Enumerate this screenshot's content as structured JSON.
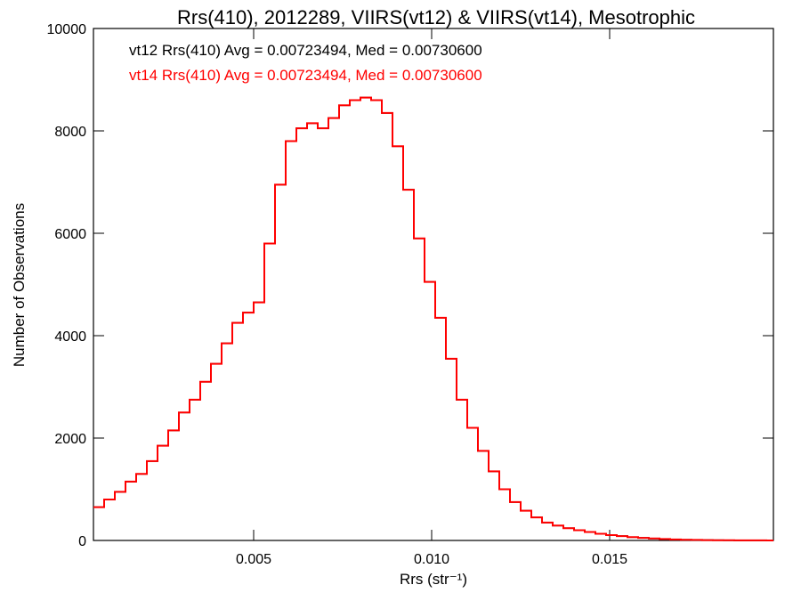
{
  "chart_data": {
    "type": "line",
    "style": "histogram-step",
    "title": "Rrs(410), 2012289, VIIRS(vt12) & VIIRS(vt14), Mesotrophic",
    "xlabel": "Rrs (str⁻¹)",
    "ylabel": "Number of Observations",
    "xlim": [
      0.0005,
      0.0196
    ],
    "ylim": [
      0,
      10000
    ],
    "x_ticks": [
      {
        "value": 0.005,
        "label": "0.005"
      },
      {
        "value": 0.01,
        "label": "0.010"
      },
      {
        "value": 0.015,
        "label": "0.015"
      }
    ],
    "y_ticks": [
      {
        "value": 0,
        "label": "0"
      },
      {
        "value": 2000,
        "label": "2000"
      },
      {
        "value": 4000,
        "label": "4000"
      },
      {
        "value": 6000,
        "label": "6000"
      },
      {
        "value": 8000,
        "label": "8000"
      },
      {
        "value": 10000,
        "label": "10000"
      }
    ],
    "grid": false,
    "annotations": [
      {
        "text": "vt12 Rrs(410) Avg = 0.00723494, Med = 0.00730600",
        "color": "#000000"
      },
      {
        "text": "vt14 Rrs(410) Avg = 0.00723494, Med = 0.00730600",
        "color": "#ff0000"
      }
    ],
    "series": [
      {
        "name": "vt12",
        "color": "#000000",
        "points": [
          [
            0.0005,
            650
          ],
          [
            0.0008,
            800
          ],
          [
            0.0011,
            950
          ],
          [
            0.0014,
            1150
          ],
          [
            0.0017,
            1300
          ],
          [
            0.002,
            1550
          ],
          [
            0.0023,
            1850
          ],
          [
            0.0026,
            2150
          ],
          [
            0.0029,
            2500
          ],
          [
            0.0032,
            2750
          ],
          [
            0.0035,
            3100
          ],
          [
            0.0038,
            3450
          ],
          [
            0.0041,
            3850
          ],
          [
            0.0044,
            4250
          ],
          [
            0.0047,
            4450
          ],
          [
            0.005,
            4650
          ],
          [
            0.0053,
            5800
          ],
          [
            0.0056,
            6950
          ],
          [
            0.0059,
            7800
          ],
          [
            0.0062,
            8050
          ],
          [
            0.0065,
            8150
          ],
          [
            0.0068,
            8050
          ],
          [
            0.0071,
            8250
          ],
          [
            0.0074,
            8500
          ],
          [
            0.0077,
            8600
          ],
          [
            0.008,
            8650
          ],
          [
            0.0083,
            8600
          ],
          [
            0.0086,
            8350
          ],
          [
            0.0089,
            7700
          ],
          [
            0.0092,
            6850
          ],
          [
            0.0095,
            5900
          ],
          [
            0.0098,
            5050
          ],
          [
            0.0101,
            4350
          ],
          [
            0.0104,
            3550
          ],
          [
            0.0107,
            2750
          ],
          [
            0.011,
            2200
          ],
          [
            0.0113,
            1750
          ],
          [
            0.0116,
            1350
          ],
          [
            0.0119,
            1000
          ],
          [
            0.0122,
            750
          ],
          [
            0.0125,
            580
          ],
          [
            0.0128,
            450
          ],
          [
            0.0131,
            350
          ],
          [
            0.0134,
            290
          ],
          [
            0.0137,
            240
          ],
          [
            0.014,
            200
          ],
          [
            0.0143,
            165
          ],
          [
            0.0146,
            130
          ],
          [
            0.0149,
            105
          ],
          [
            0.0152,
            85
          ],
          [
            0.0155,
            65
          ],
          [
            0.0158,
            50
          ],
          [
            0.0161,
            38
          ],
          [
            0.0164,
            28
          ],
          [
            0.0167,
            20
          ],
          [
            0.017,
            14
          ],
          [
            0.0173,
            10
          ],
          [
            0.0176,
            7
          ],
          [
            0.0179,
            5
          ],
          [
            0.0182,
            3
          ],
          [
            0.0185,
            2
          ],
          [
            0.0188,
            1
          ],
          [
            0.0191,
            1
          ],
          [
            0.0194,
            0
          ]
        ]
      },
      {
        "name": "vt14",
        "color": "#ff0000",
        "points": [
          [
            0.0005,
            650
          ],
          [
            0.0008,
            800
          ],
          [
            0.0011,
            950
          ],
          [
            0.0014,
            1150
          ],
          [
            0.0017,
            1300
          ],
          [
            0.002,
            1550
          ],
          [
            0.0023,
            1850
          ],
          [
            0.0026,
            2150
          ],
          [
            0.0029,
            2500
          ],
          [
            0.0032,
            2750
          ],
          [
            0.0035,
            3100
          ],
          [
            0.0038,
            3450
          ],
          [
            0.0041,
            3850
          ],
          [
            0.0044,
            4250
          ],
          [
            0.0047,
            4450
          ],
          [
            0.005,
            4650
          ],
          [
            0.0053,
            5800
          ],
          [
            0.0056,
            6950
          ],
          [
            0.0059,
            7800
          ],
          [
            0.0062,
            8050
          ],
          [
            0.0065,
            8150
          ],
          [
            0.0068,
            8050
          ],
          [
            0.0071,
            8250
          ],
          [
            0.0074,
            8500
          ],
          [
            0.0077,
            8600
          ],
          [
            0.008,
            8650
          ],
          [
            0.0083,
            8600
          ],
          [
            0.0086,
            8350
          ],
          [
            0.0089,
            7700
          ],
          [
            0.0092,
            6850
          ],
          [
            0.0095,
            5900
          ],
          [
            0.0098,
            5050
          ],
          [
            0.0101,
            4350
          ],
          [
            0.0104,
            3550
          ],
          [
            0.0107,
            2750
          ],
          [
            0.011,
            2200
          ],
          [
            0.0113,
            1750
          ],
          [
            0.0116,
            1350
          ],
          [
            0.0119,
            1000
          ],
          [
            0.0122,
            750
          ],
          [
            0.0125,
            580
          ],
          [
            0.0128,
            450
          ],
          [
            0.0131,
            350
          ],
          [
            0.0134,
            290
          ],
          [
            0.0137,
            240
          ],
          [
            0.014,
            200
          ],
          [
            0.0143,
            165
          ],
          [
            0.0146,
            130
          ],
          [
            0.0149,
            105
          ],
          [
            0.0152,
            85
          ],
          [
            0.0155,
            65
          ],
          [
            0.0158,
            50
          ],
          [
            0.0161,
            38
          ],
          [
            0.0164,
            28
          ],
          [
            0.0167,
            20
          ],
          [
            0.017,
            14
          ],
          [
            0.0173,
            10
          ],
          [
            0.0176,
            7
          ],
          [
            0.0179,
            5
          ],
          [
            0.0182,
            3
          ],
          [
            0.0185,
            2
          ],
          [
            0.0188,
            1
          ],
          [
            0.0191,
            1
          ],
          [
            0.0194,
            0
          ]
        ]
      }
    ]
  }
}
